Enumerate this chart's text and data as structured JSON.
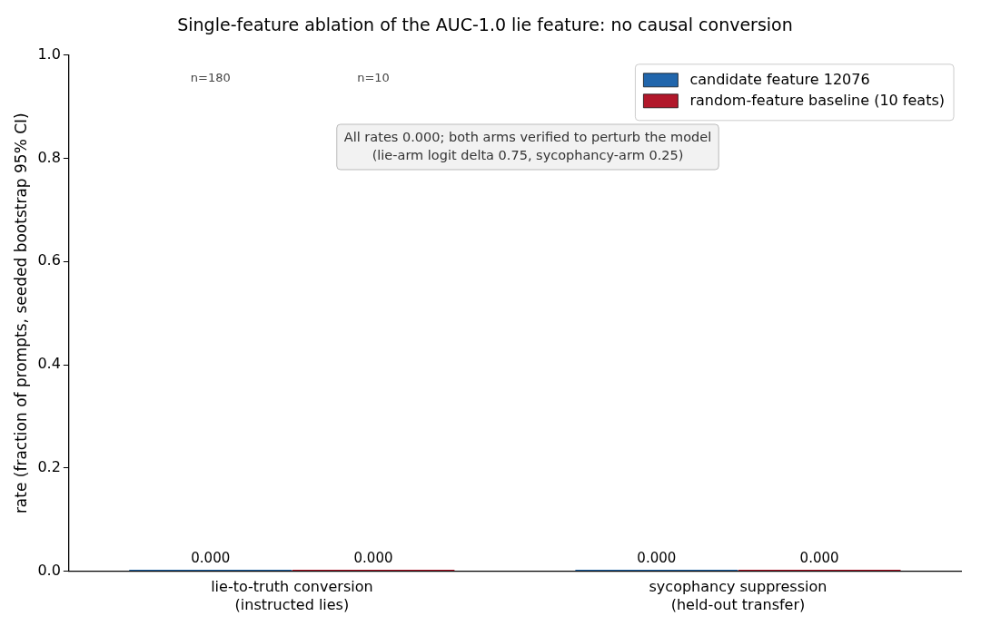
{
  "chart_data": {
    "type": "bar",
    "title": "Single-feature ablation of the AUC-1.0 lie feature: no causal conversion",
    "ylabel": "rate (fraction of prompts, seeded bootstrap 95% CI)",
    "categories": [
      "lie-to-truth conversion\n(instructed lies)",
      "sycophancy suppression\n(held-out transfer)"
    ],
    "series": [
      {
        "name": "candidate feature 12076",
        "color": "#2166ac",
        "values": [
          0,
          0
        ],
        "value_labels": [
          "0.000",
          "0.000"
        ]
      },
      {
        "name": "random-feature baseline (10 feats)",
        "color": "#b2182b",
        "values": [
          0,
          0
        ],
        "value_labels": [
          "0.000",
          "0.000"
        ]
      }
    ],
    "ylim": [
      0,
      1
    ],
    "yticks": [
      {
        "value": 0,
        "label": "0.0"
      },
      0.2,
      0.4,
      0.6,
      0.8,
      {
        "value": 1,
        "label": "1.0"
      }
    ],
    "grid": false,
    "legend": "top right",
    "annotations": [
      "n=180",
      "n=10",
      "All rates 0.000; both arms verified to perturb the model\n(lie-arm logit delta 0.75, sycophancy-arm 0.25)"
    ]
  }
}
